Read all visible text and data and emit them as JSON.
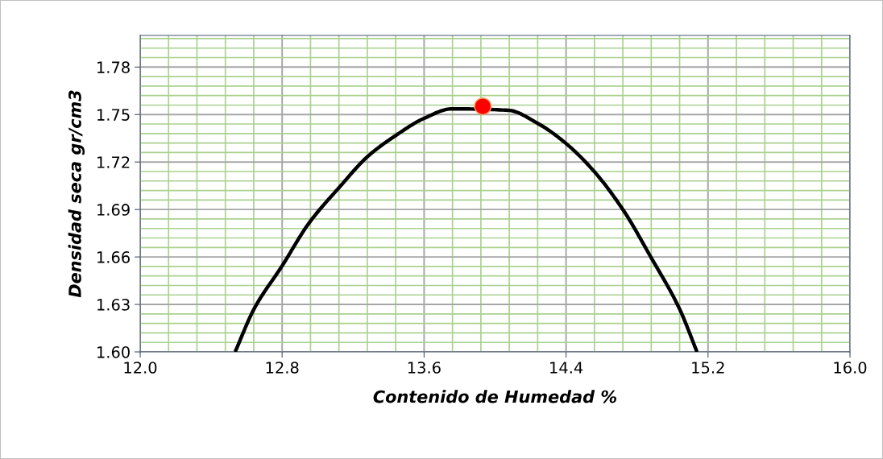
{
  "chart_data": {
    "type": "line",
    "xlabel": "Contenido de Humedad %",
    "ylabel": "Densidad seca gr/cm3",
    "series": [
      {
        "color": "#000000",
        "marker": "none",
        "line_style": "solid",
        "x": [
          12.535,
          12.641,
          12.8,
          12.952,
          13.119,
          13.286,
          13.438,
          13.6,
          13.756,
          14.075,
          14.242,
          14.402,
          14.561,
          14.72,
          14.88,
          15.039,
          15.138
        ],
        "values": [
          1.6,
          1.627,
          1.6544,
          1.6815,
          1.7036,
          1.7239,
          1.7366,
          1.7476,
          1.7536,
          1.7527,
          1.7443,
          1.7315,
          1.7137,
          1.69,
          1.6595,
          1.6273,
          1.6
        ]
      },
      {
        "type": "scatter",
        "color": "#ff0000",
        "marker": "circle",
        "x": [
          13.931
        ],
        "values": [
          1.7552
        ]
      }
    ],
    "xlim": [
      12.0,
      16.0
    ],
    "ylim": [
      1.6,
      1.8
    ],
    "xticks": [
      {
        "value": 12.0,
        "label": "12.0"
      },
      {
        "value": 12.16,
        "label": null
      },
      {
        "value": 12.32,
        "label": null
      },
      {
        "value": 12.48,
        "label": null
      },
      {
        "value": 12.64,
        "label": null
      },
      {
        "value": 12.8,
        "label": "12.8"
      },
      {
        "value": 12.96,
        "label": null
      },
      {
        "value": 13.12,
        "label": null
      },
      {
        "value": 13.28,
        "label": null
      },
      {
        "value": 13.44,
        "label": null
      },
      {
        "value": 13.6,
        "label": "13.6"
      },
      {
        "value": 13.76,
        "label": null
      },
      {
        "value": 13.92,
        "label": null
      },
      {
        "value": 14.08,
        "label": null
      },
      {
        "value": 14.24,
        "label": null
      },
      {
        "value": 14.4,
        "label": "14.4"
      },
      {
        "value": 14.56,
        "label": null
      },
      {
        "value": 14.72,
        "label": null
      },
      {
        "value": 14.88,
        "label": null
      },
      {
        "value": 15.04,
        "label": null
      },
      {
        "value": 15.2,
        "label": "15.2"
      },
      {
        "value": 15.36,
        "label": null
      },
      {
        "value": 15.52,
        "label": null
      },
      {
        "value": 15.68,
        "label": null
      },
      {
        "value": 15.84,
        "label": null
      },
      {
        "value": 16.0,
        "label": "16.0"
      }
    ],
    "yticks": [
      {
        "value": 1.6,
        "label": "1.60"
      },
      {
        "value": 1.606,
        "label": null
      },
      {
        "value": 1.612,
        "label": null
      },
      {
        "value": 1.618,
        "label": null
      },
      {
        "value": 1.624,
        "label": null
      },
      {
        "value": 1.63,
        "label": "1.63"
      },
      {
        "value": 1.636,
        "label": null
      },
      {
        "value": 1.642,
        "label": null
      },
      {
        "value": 1.648,
        "label": null
      },
      {
        "value": 1.654,
        "label": null
      },
      {
        "value": 1.66,
        "label": "1.66"
      },
      {
        "value": 1.666,
        "label": null
      },
      {
        "value": 1.672,
        "label": null
      },
      {
        "value": 1.678,
        "label": null
      },
      {
        "value": 1.684,
        "label": null
      },
      {
        "value": 1.69,
        "label": "1.69"
      },
      {
        "value": 1.696,
        "label": null
      },
      {
        "value": 1.702,
        "label": null
      },
      {
        "value": 1.708,
        "label": null
      },
      {
        "value": 1.714,
        "label": null
      },
      {
        "value": 1.72,
        "label": "1.72"
      },
      {
        "value": 1.726,
        "label": null
      },
      {
        "value": 1.732,
        "label": null
      },
      {
        "value": 1.738,
        "label": null
      },
      {
        "value": 1.744,
        "label": null
      },
      {
        "value": 1.75,
        "label": "1.75"
      },
      {
        "value": 1.756,
        "label": null
      },
      {
        "value": 1.762,
        "label": null
      },
      {
        "value": 1.768,
        "label": null
      },
      {
        "value": 1.774,
        "label": null
      },
      {
        "value": 1.78,
        "label": "1.78"
      },
      {
        "value": 1.786,
        "label": null
      },
      {
        "value": 1.792,
        "label": null
      },
      {
        "value": 1.798,
        "label": null
      }
    ],
    "grid": true
  }
}
